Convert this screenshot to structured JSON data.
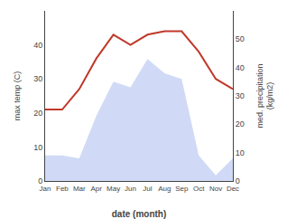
{
  "chart_data": {
    "type": "line",
    "xlabel": "date (month)",
    "ylabel": "max temp (C)",
    "y2label": "med. precipitation\n(kg/m2)",
    "categories": [
      "Jan",
      "Feb",
      "Mar",
      "Apr",
      "May",
      "Jun",
      "Jul",
      "Aug",
      "Sep",
      "Oct",
      "Nov",
      "Dec"
    ],
    "series": [
      {
        "type": "line",
        "color": "#c0392b",
        "values": [
          21,
          21,
          27,
          36,
          43,
          40,
          43,
          44,
          44,
          38,
          30,
          27
        ]
      },
      {
        "type": "area",
        "color": "#c8d4f5",
        "axis": "y2",
        "values": [
          9,
          9,
          8,
          23,
          35,
          33,
          43,
          38,
          36,
          9,
          2,
          8
        ]
      }
    ],
    "ylim": [
      0,
      50
    ],
    "yticks": [
      0,
      10,
      20,
      30,
      40
    ],
    "y2lim": [
      0,
      60
    ],
    "y2ticks": [
      0,
      10,
      20,
      30,
      40,
      50
    ],
    "grid": false
  }
}
